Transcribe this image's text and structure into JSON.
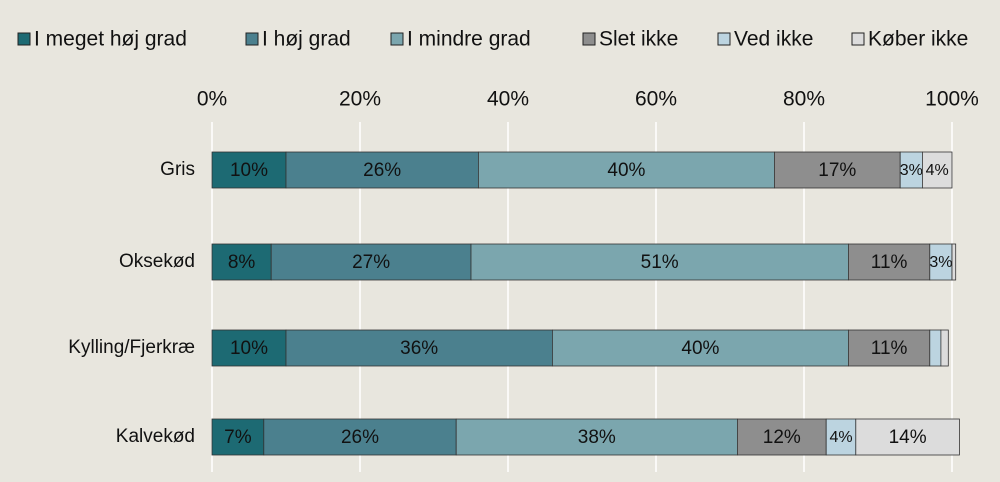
{
  "chart_data": {
    "type": "stacked-bar-horizontal",
    "categories": [
      "Gris",
      "Oksekød",
      "Kylling/Fjerkræ",
      "Kalvekød"
    ],
    "series": [
      {
        "name": "I meget høj grad",
        "color": "#1d6a73",
        "values": [
          10,
          8,
          10,
          7
        ],
        "value_labels": [
          "10%",
          "8%",
          "10%",
          "7%"
        ]
      },
      {
        "name": "I høj grad",
        "color": "#4b808e",
        "values": [
          26,
          27,
          36,
          26
        ],
        "value_labels": [
          "26%",
          "27%",
          "36%",
          "26%"
        ]
      },
      {
        "name": "I mindre grad",
        "color": "#7ba6ae",
        "values": [
          40,
          51,
          40,
          38
        ],
        "value_labels": [
          "40%",
          "51%",
          "40%",
          "38%"
        ]
      },
      {
        "name": "Slet ikke",
        "color": "#8e8e8e",
        "values": [
          17,
          11,
          11,
          12
        ],
        "value_labels": [
          "17%",
          "11%",
          "11%",
          "12%"
        ]
      },
      {
        "name": "Ved ikke",
        "color": "#bcd4e0",
        "values": [
          3,
          3,
          1.5,
          4
        ],
        "value_labels": [
          "3%",
          "3%",
          null,
          "4%"
        ]
      },
      {
        "name": "Køber ikke",
        "color": "#dcdcdc",
        "values": [
          4,
          0.5,
          1,
          14
        ],
        "value_labels": [
          "4%",
          null,
          null,
          "14%"
        ]
      }
    ],
    "xlim": [
      0,
      100
    ],
    "xticks": [
      {
        "value": 0,
        "label": "0%"
      },
      {
        "value": 20,
        "label": "20%"
      },
      {
        "value": 40,
        "label": "40%"
      },
      {
        "value": 60,
        "label": "60%"
      },
      {
        "value": 80,
        "label": "80%"
      },
      {
        "value": 100,
        "label": "100%"
      }
    ],
    "grid": true,
    "legend": "top"
  }
}
